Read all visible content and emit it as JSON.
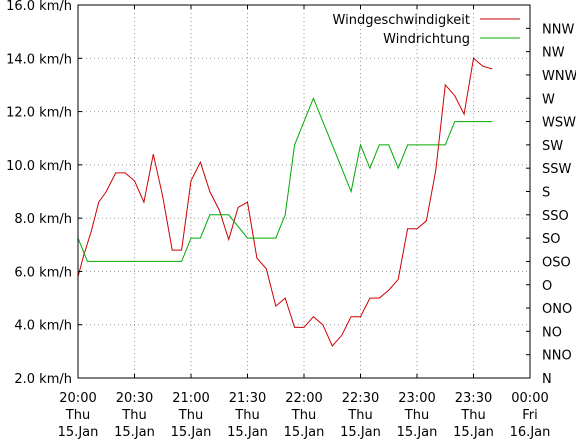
{
  "chart_data": {
    "type": "line",
    "title": "",
    "xlabel": "",
    "grid": true,
    "legend_position": "top-right",
    "x_ticks": [
      {
        "value": 0,
        "lines": [
          "20:00",
          "Thu",
          "15.Jan"
        ]
      },
      {
        "value": 30,
        "lines": [
          "20:30",
          "Thu",
          "15.Jan"
        ]
      },
      {
        "value": 60,
        "lines": [
          "21:00",
          "Thu",
          "15.Jan"
        ]
      },
      {
        "value": 90,
        "lines": [
          "21:30",
          "Thu",
          "15.Jan"
        ]
      },
      {
        "value": 120,
        "lines": [
          "22:00",
          "Thu",
          "15.Jan"
        ]
      },
      {
        "value": 150,
        "lines": [
          "22:30",
          "Thu",
          "15.Jan"
        ]
      },
      {
        "value": 180,
        "lines": [
          "23:00",
          "Thu",
          "15.Jan"
        ]
      },
      {
        "value": 210,
        "lines": [
          "23:30",
          "Thu",
          "15.Jan"
        ]
      },
      {
        "value": 240,
        "lines": [
          "00:00",
          "Fri",
          "16.Jan"
        ]
      }
    ],
    "xlim": [
      0,
      240
    ],
    "y_left": {
      "ylim": [
        2.0,
        16.0
      ],
      "ticks": [
        {
          "value": 2.0,
          "label": "2.0 km/h"
        },
        {
          "value": 4.0,
          "label": "4.0 km/h"
        },
        {
          "value": 6.0,
          "label": "6.0 km/h"
        },
        {
          "value": 8.0,
          "label": "8.0 km/h"
        },
        {
          "value": 10.0,
          "label": "10.0 km/h"
        },
        {
          "value": 12.0,
          "label": "12.0 km/h"
        },
        {
          "value": 14.0,
          "label": "14.0 km/h"
        },
        {
          "value": 16.0,
          "label": "16.0 km/h"
        }
      ]
    },
    "y_right": {
      "categories": [
        "N",
        "NNO",
        "NO",
        "ONO",
        "O",
        "OSO",
        "SO",
        "SSO",
        "S",
        "SSW",
        "SW",
        "WSW",
        "W",
        "WNW",
        "NW",
        "NNW"
      ]
    },
    "series": [
      {
        "name": "Windgeschwindigkeit",
        "color": "#cc0000",
        "axis": "left",
        "x": [
          0,
          3,
          7,
          11,
          15,
          20,
          25,
          30,
          35,
          40,
          45,
          50,
          55,
          60,
          65,
          70,
          75,
          80,
          85,
          90,
          95,
          100,
          105,
          110,
          115,
          120,
          125,
          130,
          135,
          140,
          145,
          150,
          155,
          160,
          165,
          170,
          175,
          180,
          185,
          190,
          195,
          200,
          205,
          210,
          215,
          220
        ],
        "values": [
          5.8,
          6.6,
          7.5,
          8.6,
          9.0,
          9.7,
          9.7,
          9.4,
          8.6,
          10.4,
          8.8,
          6.8,
          6.8,
          9.4,
          10.1,
          9.0,
          8.3,
          7.2,
          8.4,
          8.6,
          6.5,
          6.1,
          4.7,
          5.0,
          3.9,
          3.9,
          4.3,
          4.0,
          3.2,
          3.6,
          4.3,
          4.3,
          5.0,
          5.0,
          5.3,
          5.7,
          7.6,
          7.6,
          7.9,
          9.8,
          13.0,
          12.6,
          11.9,
          14.0,
          13.7,
          13.6
        ]
      },
      {
        "name": "Windrichtung",
        "color": "#00aa00",
        "axis": "right",
        "x": [
          0,
          5,
          10,
          20,
          30,
          40,
          50,
          55,
          60,
          65,
          70,
          80,
          90,
          100,
          105,
          110,
          115,
          120,
          125,
          130,
          135,
          140,
          145,
          150,
          155,
          160,
          165,
          170,
          175,
          180,
          185,
          190,
          195,
          200,
          205,
          210,
          215,
          220
        ],
        "values": [
          6.0,
          5.0,
          5.0,
          5.0,
          5.0,
          5.0,
          5.0,
          5.0,
          6.0,
          6.0,
          7.0,
          7.0,
          6.0,
          6.0,
          6.0,
          7.0,
          10.0,
          11.0,
          12.0,
          11.0,
          10.0,
          9.0,
          8.0,
          10.0,
          9.0,
          10.0,
          10.0,
          9.0,
          10.0,
          10.0,
          10.0,
          10.0,
          10.0,
          11.0,
          11.0,
          11.0,
          11.0,
          11.0
        ]
      }
    ]
  }
}
